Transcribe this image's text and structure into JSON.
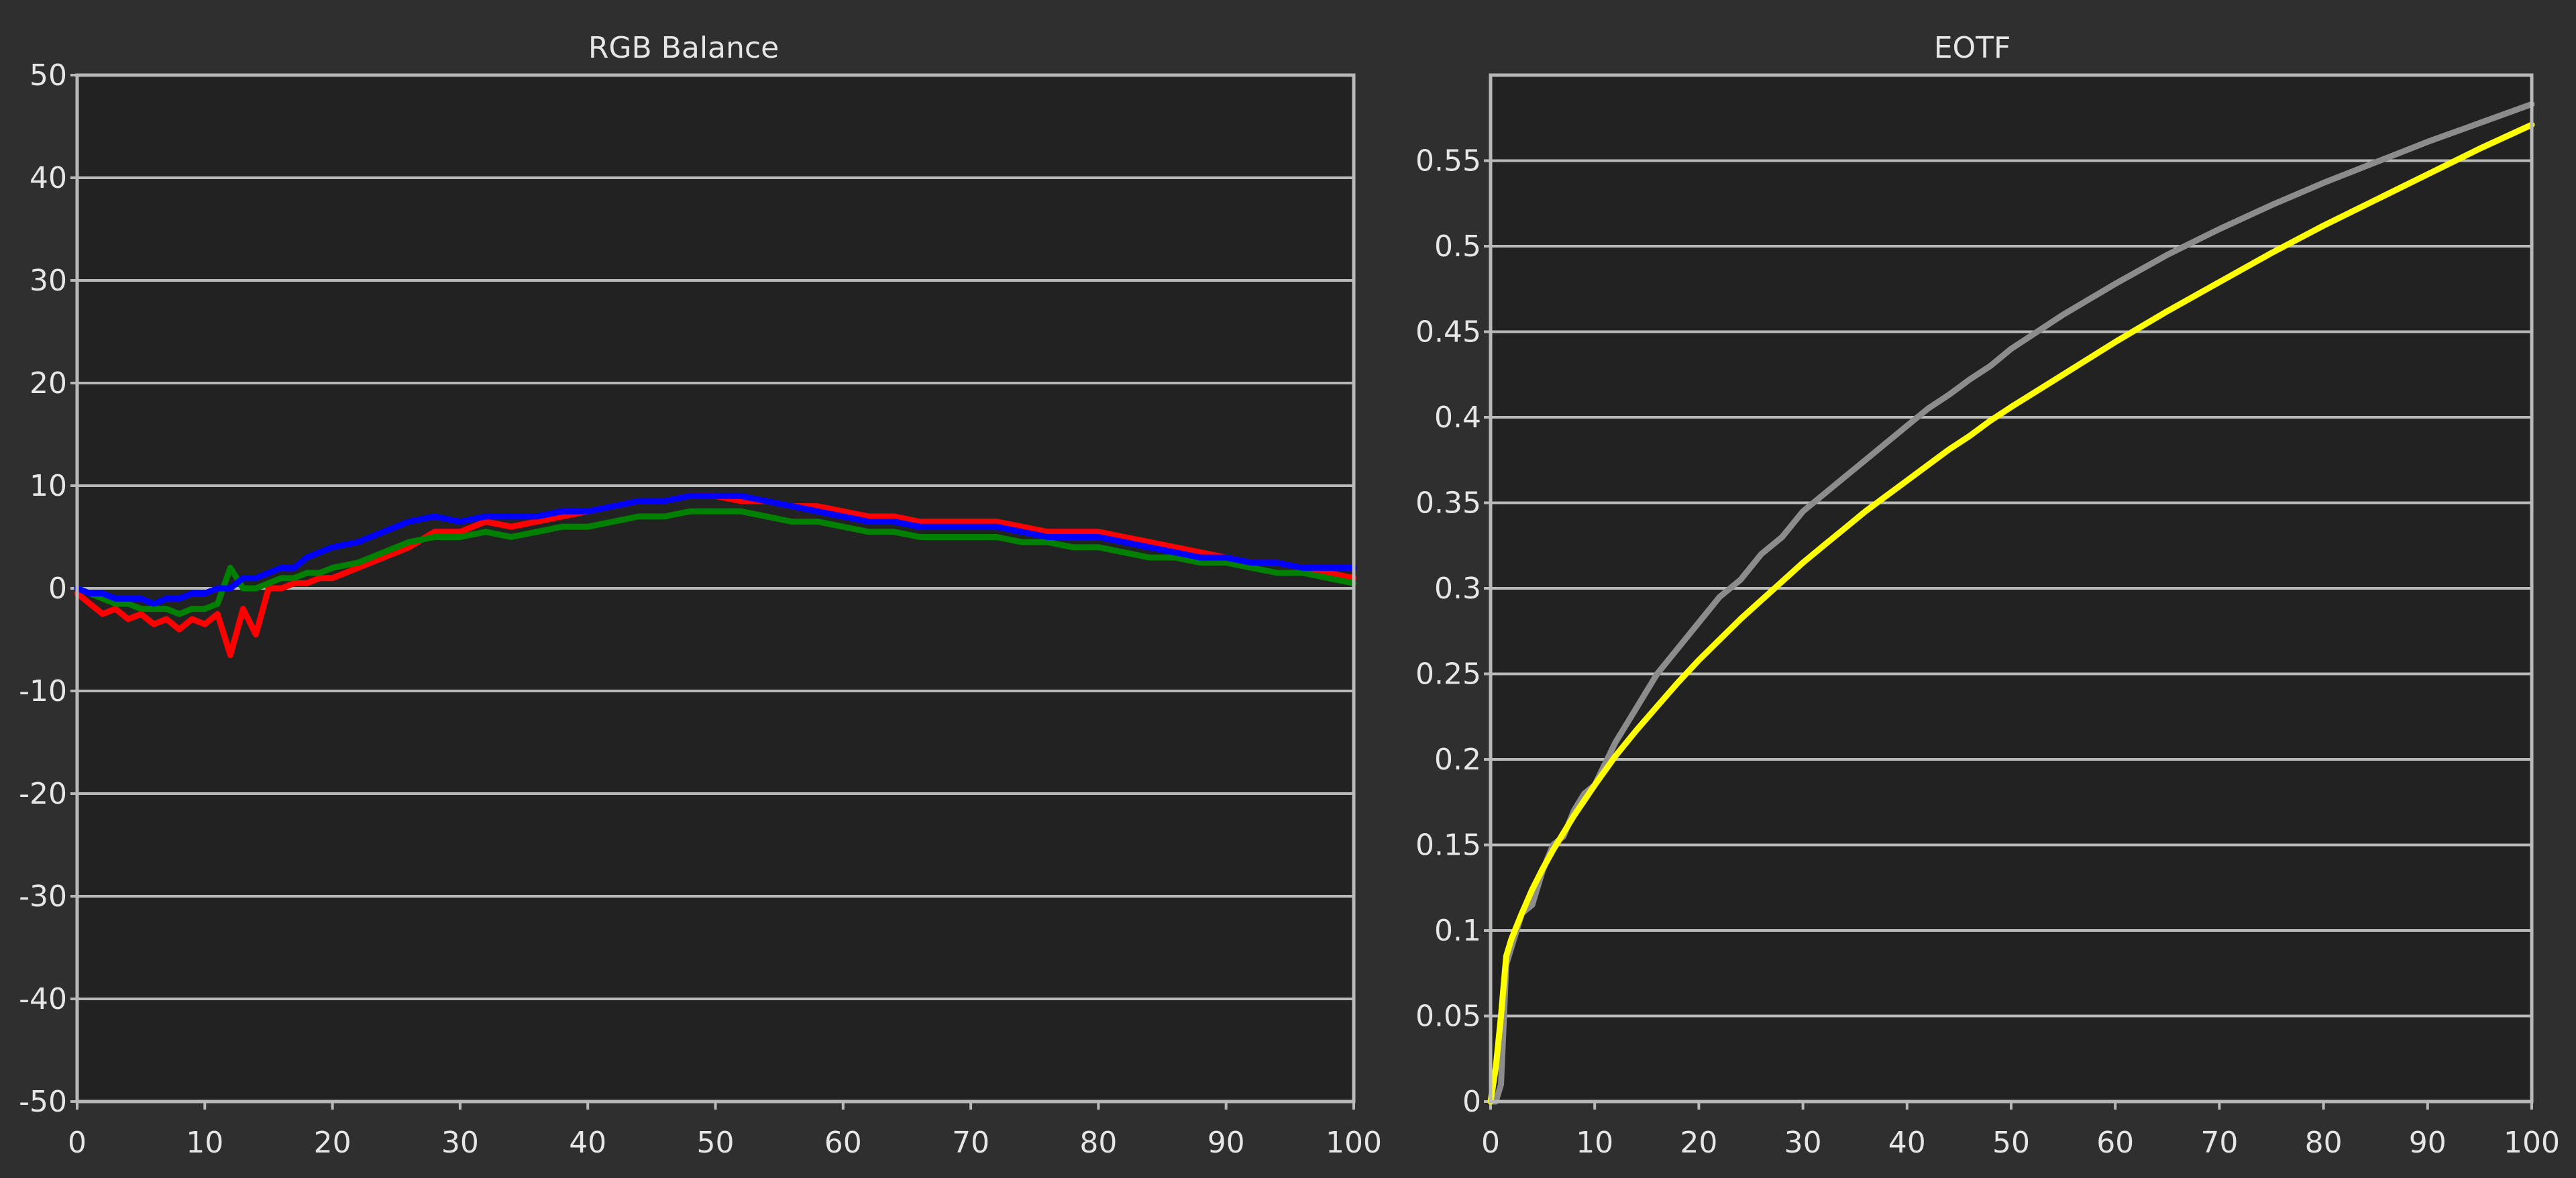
{
  "colors": {
    "background": "#2f2f2f",
    "plot_bg": "#222222",
    "grid": "#b9b9b9",
    "red": "#ff0000",
    "green": "#008000",
    "blue": "#0000ff",
    "eotf_target": "#ffff00",
    "eotf_measured": "#8c8c8c"
  },
  "chart_data": [
    {
      "type": "line",
      "title": "RGB Balance",
      "xlabel": "",
      "ylabel": "",
      "xlim": [
        0,
        100
      ],
      "ylim": [
        -50,
        50
      ],
      "grid": true,
      "x_ticks": [
        "0",
        "10",
        "20",
        "30",
        "40",
        "50",
        "60",
        "70",
        "80",
        "90",
        "100"
      ],
      "y_ticks": [
        "50",
        "40",
        "30",
        "20",
        "10",
        "0",
        "-10",
        "-20",
        "-30",
        "-40",
        "-50"
      ],
      "series": [
        {
          "color": "#ff0000",
          "x": [
            0,
            1,
            2,
            3,
            4,
            5,
            6,
            7,
            8,
            9,
            10,
            11,
            12,
            13,
            14,
            15,
            16,
            17,
            18,
            19,
            20,
            22,
            24,
            26,
            28,
            30,
            32,
            34,
            36,
            38,
            40,
            42,
            44,
            46,
            48,
            50,
            52,
            54,
            56,
            58,
            60,
            62,
            64,
            66,
            68,
            70,
            72,
            74,
            76,
            78,
            80,
            82,
            84,
            86,
            88,
            90,
            92,
            94,
            96,
            98,
            100
          ],
          "y": [
            -0.5,
            -1.5,
            -2.5,
            -2,
            -3,
            -2.5,
            -3.5,
            -3,
            -4,
            -3,
            -3.5,
            -2.5,
            -6.5,
            -2,
            -4.5,
            0,
            0,
            0.5,
            0.5,
            1,
            1,
            2,
            3,
            4,
            5.5,
            5.5,
            6.5,
            6,
            6.5,
            7,
            7.5,
            8,
            8.5,
            8.5,
            9,
            9,
            8.5,
            8.5,
            8,
            8,
            7.5,
            7,
            7,
            6.5,
            6.5,
            6.5,
            6.5,
            6,
            5.5,
            5.5,
            5.5,
            5,
            4.5,
            4,
            3.5,
            3,
            2.5,
            2.5,
            2,
            1.5,
            1
          ]
        },
        {
          "color": "#008000",
          "x": [
            0,
            1,
            2,
            3,
            4,
            5,
            6,
            7,
            8,
            9,
            10,
            11,
            12,
            13,
            14,
            15,
            16,
            17,
            18,
            19,
            20,
            22,
            24,
            26,
            28,
            30,
            32,
            34,
            36,
            38,
            40,
            42,
            44,
            46,
            48,
            50,
            52,
            54,
            56,
            58,
            60,
            62,
            64,
            66,
            68,
            70,
            72,
            74,
            76,
            78,
            80,
            82,
            84,
            86,
            88,
            90,
            92,
            94,
            96,
            98,
            100
          ],
          "y": [
            0,
            -0.5,
            -1,
            -1.5,
            -1.5,
            -2,
            -2,
            -2,
            -2.5,
            -2,
            -2,
            -1.5,
            2,
            0,
            0,
            0.5,
            1,
            1,
            1.5,
            1.5,
            2,
            2.5,
            3.5,
            4.5,
            5,
            5,
            5.5,
            5,
            5.5,
            6,
            6,
            6.5,
            7,
            7,
            7.5,
            7.5,
            7.5,
            7,
            6.5,
            6.5,
            6,
            5.5,
            5.5,
            5,
            5,
            5,
            5,
            4.5,
            4.5,
            4,
            4,
            3.5,
            3,
            3,
            2.5,
            2.5,
            2,
            1.5,
            1.5,
            1,
            0.5
          ]
        },
        {
          "color": "#0000ff",
          "x": [
            0,
            1,
            2,
            3,
            4,
            5,
            6,
            7,
            8,
            9,
            10,
            11,
            12,
            13,
            14,
            15,
            16,
            17,
            18,
            19,
            20,
            22,
            24,
            26,
            28,
            30,
            32,
            34,
            36,
            38,
            40,
            42,
            44,
            46,
            48,
            50,
            52,
            54,
            56,
            58,
            60,
            62,
            64,
            66,
            68,
            70,
            72,
            74,
            76,
            78,
            80,
            82,
            84,
            86,
            88,
            90,
            92,
            94,
            96,
            98,
            100
          ],
          "y": [
            0,
            -0.5,
            -0.5,
            -1,
            -1,
            -1,
            -1.5,
            -1,
            -1,
            -0.5,
            -0.5,
            0,
            0,
            1,
            1,
            1.5,
            2,
            2,
            3,
            3.5,
            4,
            4.5,
            5.5,
            6.5,
            7,
            6.5,
            7,
            7,
            7,
            7.5,
            7.5,
            8,
            8.5,
            8.5,
            9,
            9,
            9,
            8.5,
            8,
            7.5,
            7,
            6.5,
            6.5,
            6,
            6,
            6,
            6,
            5.5,
            5,
            5,
            5,
            4.5,
            4,
            3.5,
            3,
            3,
            2.5,
            2.5,
            2,
            2,
            2
          ]
        }
      ]
    },
    {
      "type": "line",
      "title": "EOTF",
      "xlabel": "",
      "ylabel": "",
      "xlim": [
        0,
        100
      ],
      "ylim": [
        0,
        0.6
      ],
      "grid": true,
      "x_ticks": [
        "0",
        "10",
        "20",
        "30",
        "40",
        "50",
        "60",
        "70",
        "80",
        "90",
        "100"
      ],
      "y_ticks": [
        "0.55",
        "0.5",
        "0.45",
        "0.4",
        "0.35",
        "0.3",
        "0.25",
        "0.2",
        "0.15",
        "0.1",
        "0.05",
        "0"
      ],
      "series": [
        {
          "color": "#8c8c8c",
          "x": [
            0,
            0.5,
            1,
            1.5,
            2,
            3,
            4,
            5,
            6,
            7,
            8,
            9,
            10,
            12,
            14,
            16,
            18,
            20,
            22,
            24,
            26,
            28,
            30,
            32,
            34,
            36,
            38,
            40,
            42,
            44,
            46,
            48,
            50,
            55,
            60,
            65,
            70,
            75,
            80,
            85,
            90,
            95,
            100
          ],
          "y": [
            0,
            0,
            0.01,
            0.08,
            0.09,
            0.11,
            0.115,
            0.135,
            0.15,
            0.155,
            0.17,
            0.18,
            0.185,
            0.21,
            0.23,
            0.25,
            0.265,
            0.28,
            0.295,
            0.305,
            0.32,
            0.33,
            0.345,
            0.355,
            0.365,
            0.375,
            0.385,
            0.395,
            0.405,
            0.413,
            0.422,
            0.43,
            0.44,
            0.46,
            0.478,
            0.495,
            0.51,
            0.524,
            0.537,
            0.549,
            0.561,
            0.572,
            0.583
          ]
        },
        {
          "color": "#ffff00",
          "x": [
            0,
            0.5,
            1,
            1.5,
            2,
            3,
            4,
            5,
            6,
            7,
            8,
            9,
            10,
            12,
            14,
            16,
            18,
            20,
            22,
            24,
            26,
            28,
            30,
            32,
            34,
            36,
            38,
            40,
            42,
            44,
            46,
            48,
            50,
            55,
            60,
            65,
            70,
            75,
            80,
            85,
            90,
            95,
            100
          ],
          "y": [
            0,
            0.02,
            0.05,
            0.085,
            0.095,
            0.11,
            0.124,
            0.136,
            0.147,
            0.157,
            0.167,
            0.176,
            0.185,
            0.202,
            0.217,
            0.231,
            0.245,
            0.258,
            0.27,
            0.282,
            0.293,
            0.304,
            0.315,
            0.325,
            0.335,
            0.345,
            0.354,
            0.363,
            0.372,
            0.381,
            0.389,
            0.398,
            0.406,
            0.425,
            0.444,
            0.462,
            0.479,
            0.496,
            0.512,
            0.527,
            0.542,
            0.557,
            0.571
          ]
        }
      ]
    }
  ]
}
